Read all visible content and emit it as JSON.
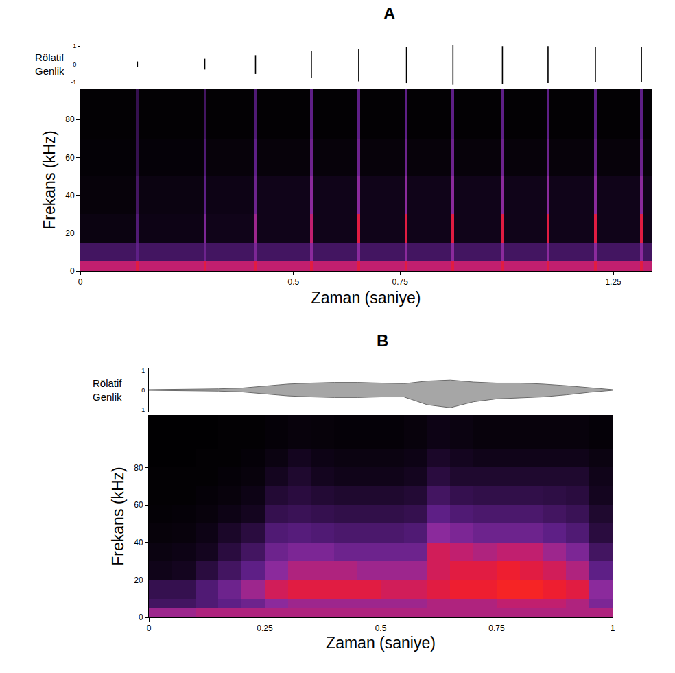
{
  "chart_data": [
    {
      "type": "spectrogram",
      "title": "A",
      "x_label": "Zaman (saniye)",
      "xlim": [
        0,
        1.34
      ],
      "xticks": [
        0,
        0.5,
        0.75,
        1.25
      ],
      "waveform": {
        "type": "pulses",
        "y_label": "Rölatif Genlik",
        "ylim": [
          -1.2,
          1.2
        ],
        "yticks": [
          -1,
          0,
          1
        ],
        "x": [
          0.134,
          0.292,
          0.411,
          0.542,
          0.653,
          0.765,
          0.874,
          0.99,
          1.097,
          1.208,
          1.316
        ],
        "upper": [
          0.15,
          0.3,
          0.5,
          0.7,
          0.85,
          0.95,
          1.05,
          1.0,
          1.0,
          0.95,
          0.95
        ],
        "lower": [
          -0.15,
          -0.3,
          -0.55,
          -0.75,
          -0.95,
          -1.05,
          -1.15,
          -1.1,
          -1.05,
          -1.0,
          -1.0
        ]
      },
      "spectrogram": {
        "y_label": "Frekans (kHz)",
        "ylim": [
          0,
          96
        ],
        "yticks": [
          0,
          20,
          40,
          60,
          80
        ],
        "x_edges": [
          0,
          0.131,
          0.137,
          0.289,
          0.295,
          0.408,
          0.414,
          0.539,
          0.545,
          0.65,
          0.656,
          0.762,
          0.768,
          0.871,
          0.877,
          0.987,
          0.993,
          1.094,
          1.1,
          1.205,
          1.211,
          1.313,
          1.319,
          1.34
        ],
        "y_edges": [
          0,
          5,
          15,
          30,
          50,
          70,
          96
        ],
        "zlim": [
          0,
          1
        ],
        "z": [
          [
            0.75,
            0.85,
            0.75,
            0.85,
            0.75,
            0.85,
            0.75,
            0.85,
            0.75,
            0.85,
            0.75,
            0.85,
            0.75,
            0.85,
            0.75,
            0.85,
            0.75,
            0.85,
            0.75,
            0.85,
            0.75,
            0.85,
            0.75
          ],
          [
            0.35,
            0.45,
            0.35,
            0.5,
            0.35,
            0.55,
            0.35,
            0.6,
            0.35,
            0.6,
            0.35,
            0.6,
            0.35,
            0.6,
            0.35,
            0.6,
            0.35,
            0.6,
            0.35,
            0.6,
            0.35,
            0.6,
            0.35
          ],
          [
            0.08,
            0.4,
            0.1,
            0.55,
            0.12,
            0.65,
            0.12,
            0.75,
            0.12,
            0.85,
            0.12,
            0.85,
            0.12,
            0.85,
            0.12,
            0.85,
            0.12,
            0.85,
            0.12,
            0.85,
            0.12,
            0.85,
            0.12
          ],
          [
            0.05,
            0.35,
            0.08,
            0.45,
            0.1,
            0.5,
            0.12,
            0.6,
            0.12,
            0.6,
            0.12,
            0.6,
            0.12,
            0.6,
            0.12,
            0.6,
            0.12,
            0.6,
            0.12,
            0.6,
            0.12,
            0.6,
            0.12
          ],
          [
            0.03,
            0.3,
            0.04,
            0.4,
            0.05,
            0.45,
            0.05,
            0.5,
            0.05,
            0.5,
            0.05,
            0.5,
            0.05,
            0.5,
            0.05,
            0.5,
            0.05,
            0.5,
            0.05,
            0.5,
            0.05,
            0.5,
            0.05
          ],
          [
            0.02,
            0.3,
            0.02,
            0.35,
            0.02,
            0.4,
            0.02,
            0.45,
            0.02,
            0.45,
            0.02,
            0.45,
            0.02,
            0.45,
            0.02,
            0.45,
            0.02,
            0.45,
            0.02,
            0.45,
            0.02,
            0.45,
            0.02
          ]
        ]
      }
    },
    {
      "type": "spectrogram",
      "title": "B",
      "x_label": "Zaman (saniye)",
      "xlim": [
        0,
        1
      ],
      "xticks": [
        0,
        0.25,
        0.5,
        0.75,
        1
      ],
      "waveform": {
        "type": "envelope",
        "y_label": "Rölatif Genlik",
        "ylim": [
          -1.1,
          1.1
        ],
        "yticks": [
          -1,
          0,
          1
        ],
        "x": [
          0,
          0.05,
          0.1,
          0.15,
          0.2,
          0.25,
          0.3,
          0.35,
          0.4,
          0.45,
          0.5,
          0.55,
          0.6,
          0.65,
          0.7,
          0.75,
          0.8,
          0.85,
          0.9,
          0.95,
          1
        ],
        "upper": [
          0.02,
          0.03,
          0.04,
          0.06,
          0.1,
          0.2,
          0.3,
          0.35,
          0.38,
          0.38,
          0.35,
          0.32,
          0.45,
          0.5,
          0.4,
          0.35,
          0.35,
          0.3,
          0.22,
          0.12,
          0.02
        ],
        "lower": [
          -0.02,
          -0.03,
          -0.04,
          -0.06,
          -0.1,
          -0.2,
          -0.3,
          -0.35,
          -0.38,
          -0.38,
          -0.35,
          -0.35,
          -0.75,
          -0.9,
          -0.6,
          -0.45,
          -0.4,
          -0.35,
          -0.25,
          -0.12,
          -0.02
        ]
      },
      "spectrogram": {
        "y_label": "Frekans (kHz)",
        "ylim": [
          0,
          108
        ],
        "yticks": [
          0,
          20,
          40,
          60,
          80
        ],
        "x_edges": [
          0,
          0.05,
          0.1,
          0.15,
          0.2,
          0.25,
          0.3,
          0.35,
          0.4,
          0.45,
          0.5,
          0.55,
          0.6,
          0.65,
          0.7,
          0.75,
          0.8,
          0.85,
          0.9,
          0.95,
          1
        ],
        "y_edges": [
          0,
          5,
          10,
          20,
          30,
          40,
          50,
          60,
          70,
          80,
          90,
          108
        ],
        "zlim": [
          0,
          1
        ],
        "z": [
          [
            0.65,
            0.65,
            0.7,
            0.7,
            0.7,
            0.7,
            0.7,
            0.7,
            0.7,
            0.7,
            0.7,
            0.7,
            0.7,
            0.7,
            0.7,
            0.7,
            0.7,
            0.7,
            0.7,
            0.7
          ],
          [
            0.35,
            0.35,
            0.4,
            0.45,
            0.5,
            0.6,
            0.65,
            0.65,
            0.65,
            0.65,
            0.65,
            0.65,
            0.7,
            0.7,
            0.7,
            0.75,
            0.75,
            0.75,
            0.7,
            0.55
          ],
          [
            0.3,
            0.3,
            0.4,
            0.5,
            0.65,
            0.8,
            0.85,
            0.85,
            0.85,
            0.85,
            0.8,
            0.8,
            0.85,
            0.9,
            0.9,
            0.95,
            0.95,
            0.9,
            0.85,
            0.6
          ],
          [
            0.12,
            0.15,
            0.25,
            0.35,
            0.45,
            0.6,
            0.7,
            0.7,
            0.7,
            0.65,
            0.65,
            0.65,
            0.8,
            0.85,
            0.85,
            0.9,
            0.85,
            0.8,
            0.7,
            0.45
          ],
          [
            0.08,
            0.1,
            0.15,
            0.25,
            0.35,
            0.5,
            0.55,
            0.55,
            0.5,
            0.5,
            0.5,
            0.5,
            0.8,
            0.75,
            0.7,
            0.75,
            0.75,
            0.65,
            0.55,
            0.35
          ],
          [
            0.05,
            0.06,
            0.1,
            0.18,
            0.25,
            0.4,
            0.42,
            0.4,
            0.38,
            0.38,
            0.38,
            0.4,
            0.6,
            0.55,
            0.5,
            0.5,
            0.5,
            0.45,
            0.4,
            0.25
          ],
          [
            0.03,
            0.04,
            0.06,
            0.1,
            0.15,
            0.3,
            0.32,
            0.3,
            0.28,
            0.28,
            0.28,
            0.3,
            0.45,
            0.4,
            0.38,
            0.38,
            0.38,
            0.35,
            0.32,
            0.2
          ],
          [
            0.02,
            0.02,
            0.04,
            0.06,
            0.1,
            0.22,
            0.25,
            0.22,
            0.2,
            0.2,
            0.2,
            0.22,
            0.35,
            0.3,
            0.28,
            0.28,
            0.28,
            0.27,
            0.25,
            0.15
          ],
          [
            0.02,
            0.02,
            0.02,
            0.04,
            0.06,
            0.15,
            0.2,
            0.15,
            0.12,
            0.12,
            0.12,
            0.15,
            0.25,
            0.2,
            0.2,
            0.2,
            0.2,
            0.2,
            0.2,
            0.12
          ],
          [
            0.01,
            0.01,
            0.02,
            0.02,
            0.04,
            0.08,
            0.15,
            0.1,
            0.08,
            0.08,
            0.08,
            0.1,
            0.18,
            0.15,
            0.12,
            0.12,
            0.12,
            0.12,
            0.12,
            0.08
          ],
          [
            0.01,
            0.01,
            0.01,
            0.02,
            0.02,
            0.04,
            0.06,
            0.05,
            0.04,
            0.04,
            0.04,
            0.06,
            0.1,
            0.08,
            0.06,
            0.06,
            0.06,
            0.06,
            0.06,
            0.04
          ]
        ]
      }
    }
  ]
}
